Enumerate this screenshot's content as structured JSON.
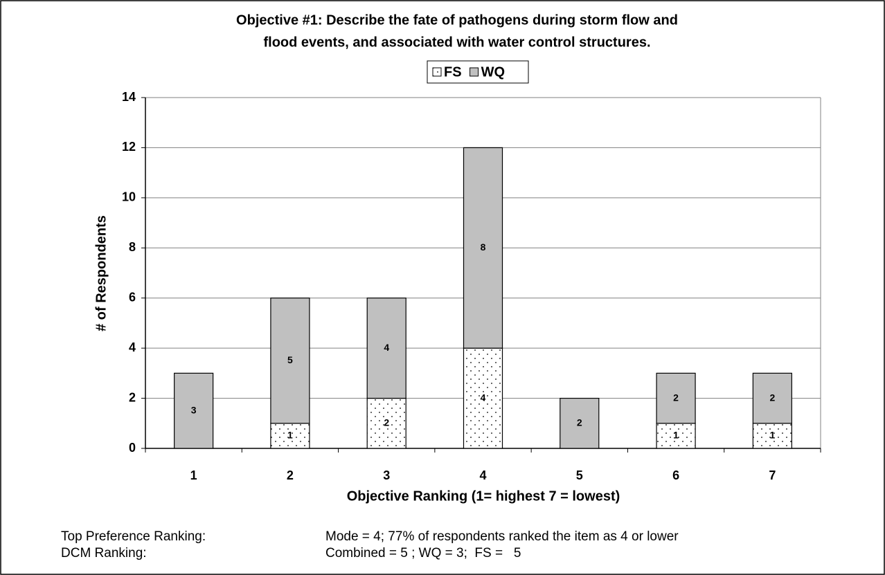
{
  "chart_data": {
    "type": "stacked_bar",
    "title_lines": [
      "Objective #1:  Describe the fate of pathogens during storm flow and",
      "flood events, and associated with water control structures."
    ],
    "x_label": "Objective Ranking (1= highest 7 = lowest)",
    "y_label": "# of Respondents",
    "categories": [
      "1",
      "2",
      "3",
      "4",
      "5",
      "6",
      "7"
    ],
    "series": [
      {
        "name": "FS",
        "color": "#ffffff",
        "fill_pattern": "dotted",
        "values": [
          0,
          1,
          2,
          4,
          0,
          1,
          1
        ]
      },
      {
        "name": "WQ",
        "color": "#c0c0c0",
        "values": [
          3,
          5,
          4,
          8,
          2,
          2,
          2
        ]
      }
    ],
    "ylim": [
      0,
      14
    ],
    "yticks": [
      0,
      2,
      4,
      6,
      8,
      10,
      12,
      14
    ],
    "grid": true,
    "legend": "top",
    "notes": [
      {
        "label": "Top Preference Ranking:",
        "text": "Mode = 4; 77% of respondents ranked the item as 4 or lower"
      },
      {
        "label": "DCM Ranking:",
        "text": "Combined = 5 ; WQ = 3;  FS =   5"
      }
    ]
  }
}
